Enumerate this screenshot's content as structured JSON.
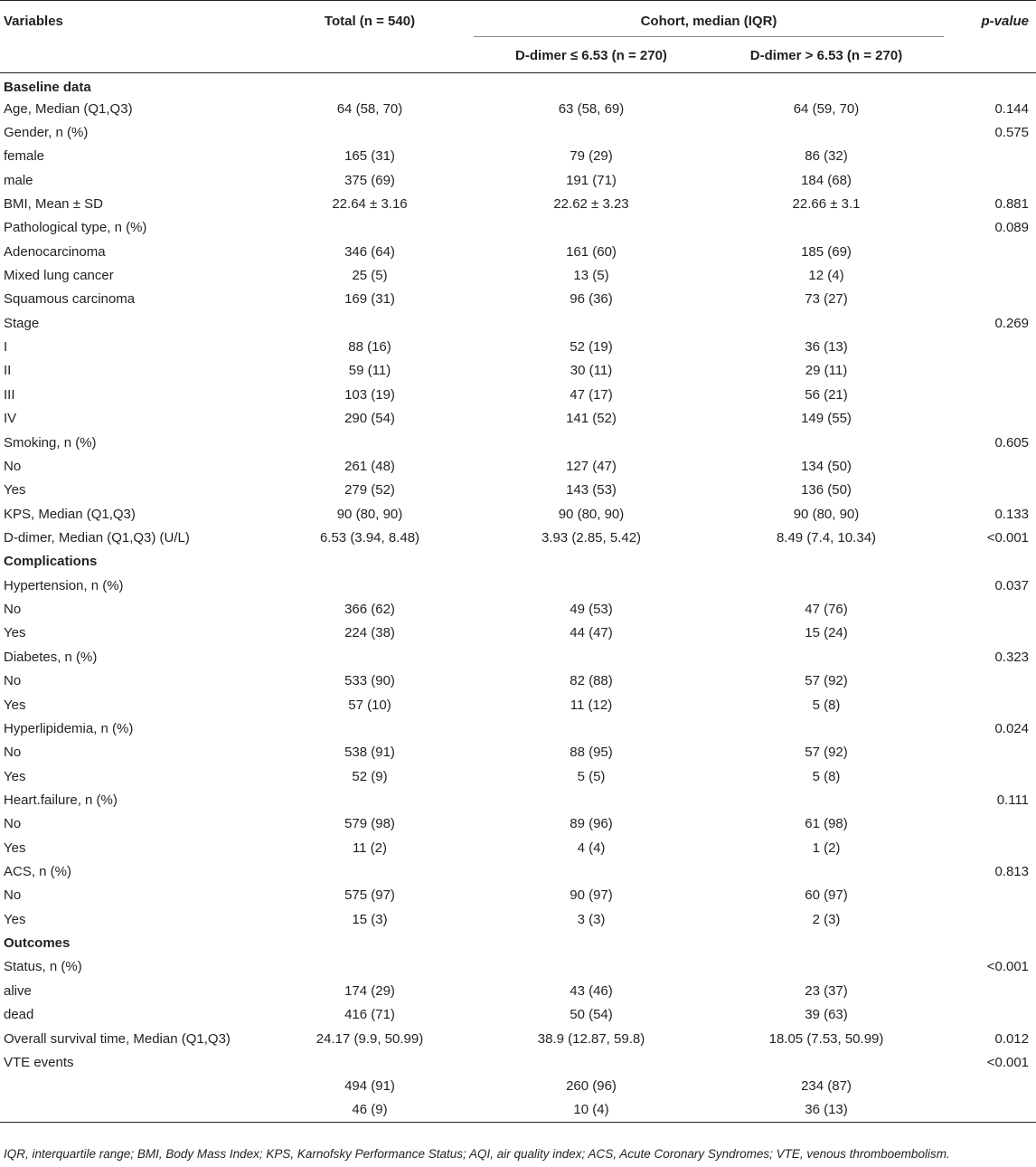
{
  "header": {
    "variables": "Variables",
    "total": "Total (n = 540)",
    "cohort_group": "Cohort, median (IQR)",
    "low": "D-dimer ≤ 6.53 (n = 270)",
    "high": "D-dimer > 6.53 (n = 270)",
    "pvalue": "p-value"
  },
  "rows": [
    {
      "type": "section",
      "label": "Baseline data",
      "total": "",
      "low": "",
      "high": "",
      "p": ""
    },
    {
      "type": "row",
      "label": "Age, Median (Q1,Q3)",
      "total": "64 (58, 70)",
      "low": "63 (58, 69)",
      "high": "64 (59, 70)",
      "p": "0.144"
    },
    {
      "type": "row",
      "label": "Gender, n (%)",
      "total": "",
      "low": "",
      "high": "",
      "p": "0.575"
    },
    {
      "type": "row",
      "label": "female",
      "total": "165 (31)",
      "low": "79 (29)",
      "high": "86 (32)",
      "p": ""
    },
    {
      "type": "row",
      "label": "male",
      "total": "375 (69)",
      "low": "191 (71)",
      "high": "184 (68)",
      "p": ""
    },
    {
      "type": "row",
      "label": "BMI, Mean ± SD",
      "total": "22.64 ± 3.16",
      "low": "22.62 ± 3.23",
      "high": "22.66 ± 3.1",
      "p": "0.881"
    },
    {
      "type": "row",
      "label": "Pathological type, n (%)",
      "total": "",
      "low": "",
      "high": "",
      "p": "0.089"
    },
    {
      "type": "row",
      "label": "Adenocarcinoma",
      "total": "346 (64)",
      "low": "161 (60)",
      "high": "185 (69)",
      "p": ""
    },
    {
      "type": "row",
      "label": "Mixed lung cancer",
      "total": "25 (5)",
      "low": "13 (5)",
      "high": "12 (4)",
      "p": ""
    },
    {
      "type": "row",
      "label": "Squamous carcinoma",
      "total": "169 (31)",
      "low": "96 (36)",
      "high": "73 (27)",
      "p": ""
    },
    {
      "type": "row",
      "label": "Stage",
      "total": "",
      "low": "",
      "high": "",
      "p": "0.269"
    },
    {
      "type": "row",
      "label": "I",
      "total": "88 (16)",
      "low": "52 (19)",
      "high": "36 (13)",
      "p": ""
    },
    {
      "type": "row",
      "label": "II",
      "total": "59 (11)",
      "low": "30 (11)",
      "high": "29 (11)",
      "p": ""
    },
    {
      "type": "row",
      "label": "III",
      "total": "103 (19)",
      "low": "47 (17)",
      "high": "56 (21)",
      "p": ""
    },
    {
      "type": "row",
      "label": "IV",
      "total": "290 (54)",
      "low": "141 (52)",
      "high": "149 (55)",
      "p": ""
    },
    {
      "type": "row",
      "label": "Smoking, n (%)",
      "total": "",
      "low": "",
      "high": "",
      "p": "0.605"
    },
    {
      "type": "row",
      "label": "No",
      "total": "261 (48)",
      "low": "127 (47)",
      "high": "134 (50)",
      "p": ""
    },
    {
      "type": "row",
      "label": "Yes",
      "total": "279 (52)",
      "low": "143 (53)",
      "high": "136 (50)",
      "p": ""
    },
    {
      "type": "row",
      "label": "KPS, Median (Q1,Q3)",
      "total": "90 (80, 90)",
      "low": "90 (80, 90)",
      "high": "90 (80, 90)",
      "p": "0.133"
    },
    {
      "type": "row",
      "label": "D-dimer, Median (Q1,Q3) (U/L)",
      "total": "6.53 (3.94, 8.48)",
      "low": "3.93 (2.85, 5.42)",
      "high": "8.49 (7.4, 10.34)",
      "p": "<0.001"
    },
    {
      "type": "section",
      "label": "Complications",
      "total": "",
      "low": "",
      "high": "",
      "p": ""
    },
    {
      "type": "row",
      "label": "Hypertension, n (%)",
      "total": "",
      "low": "",
      "high": "",
      "p": "0.037"
    },
    {
      "type": "row",
      "label": "No",
      "total": "366 (62)",
      "low": "49 (53)",
      "high": "47 (76)",
      "p": ""
    },
    {
      "type": "row",
      "label": "Yes",
      "total": "224 (38)",
      "low": "44 (47)",
      "high": "15 (24)",
      "p": ""
    },
    {
      "type": "row",
      "label": "Diabetes, n (%)",
      "total": "",
      "low": "",
      "high": "",
      "p": "0.323"
    },
    {
      "type": "row",
      "label": "No",
      "total": "533 (90)",
      "low": "82 (88)",
      "high": "57 (92)",
      "p": ""
    },
    {
      "type": "row",
      "label": "Yes",
      "total": "57 (10)",
      "low": "11 (12)",
      "high": "5 (8)",
      "p": ""
    },
    {
      "type": "row",
      "label": "Hyperlipidemia, n (%)",
      "total": "",
      "low": "",
      "high": "",
      "p": "0.024"
    },
    {
      "type": "row",
      "label": "No",
      "total": "538 (91)",
      "low": "88 (95)",
      "high": "57 (92)",
      "p": ""
    },
    {
      "type": "row",
      "label": "Yes",
      "total": "52 (9)",
      "low": "5 (5)",
      "high": "5 (8)",
      "p": ""
    },
    {
      "type": "row",
      "label": "Heart.failure, n (%)",
      "total": "",
      "low": "",
      "high": "",
      "p": "0.111"
    },
    {
      "type": "row",
      "label": "No",
      "total": "579 (98)",
      "low": "89 (96)",
      "high": "61 (98)",
      "p": ""
    },
    {
      "type": "row",
      "label": "Yes",
      "total": "11 (2)",
      "low": "4 (4)",
      "high": "1 (2)",
      "p": ""
    },
    {
      "type": "row",
      "label": "ACS, n (%)",
      "total": "",
      "low": "",
      "high": "",
      "p": "0.813"
    },
    {
      "type": "row",
      "label": "No",
      "total": "575 (97)",
      "low": "90 (97)",
      "high": "60 (97)",
      "p": ""
    },
    {
      "type": "row",
      "label": "Yes",
      "total": "15 (3)",
      "low": "3 (3)",
      "high": "2 (3)",
      "p": ""
    },
    {
      "type": "section",
      "label": "Outcomes",
      "total": "",
      "low": "",
      "high": "",
      "p": ""
    },
    {
      "type": "row",
      "label": "Status, n (%)",
      "total": "",
      "low": "",
      "high": "",
      "p": "<0.001"
    },
    {
      "type": "row",
      "label": "alive",
      "total": "174 (29)",
      "low": "43 (46)",
      "high": "23 (37)",
      "p": ""
    },
    {
      "type": "row",
      "label": "dead",
      "total": "416 (71)",
      "low": "50 (54)",
      "high": "39 (63)",
      "p": ""
    },
    {
      "type": "row",
      "label": "Overall survival time, Median (Q1,Q3)",
      "total": "24.17 (9.9, 50.99)",
      "low": "38.9 (12.87, 59.8)",
      "high": "18.05 (7.53, 50.99)",
      "p": "0.012"
    },
    {
      "type": "row",
      "label": "VTE events",
      "total": "",
      "low": "",
      "high": "",
      "p": "<0.001"
    },
    {
      "type": "row",
      "label": "",
      "total": "494 (91)",
      "low": "260 (96)",
      "high": "234 (87)",
      "p": ""
    },
    {
      "type": "row",
      "label": "",
      "total": "46 (9)",
      "low": "10 (4)",
      "high": "36 (13)",
      "p": ""
    }
  ],
  "footnote": "IQR, interquartile range; BMI, Body Mass Index; KPS, Karnofsky Performance Status; AQI, air quality index; ACS, Acute Coronary Syndromes; VTE, venous thromboembolism."
}
